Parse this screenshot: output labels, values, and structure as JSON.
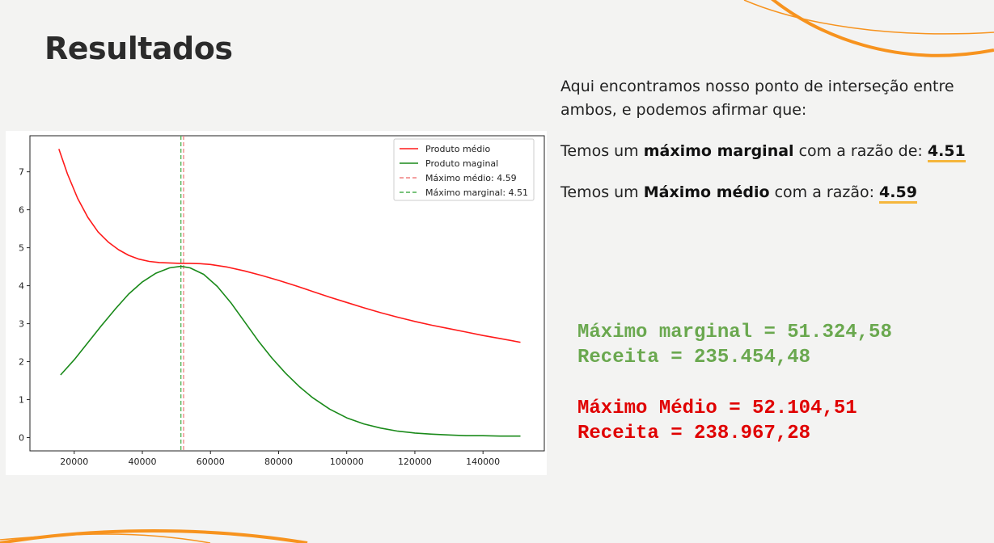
{
  "page": {
    "title": "Resultados",
    "intro": "Aqui encontramos nosso ponto de interseção entre ambos, e podemos afirmar que:",
    "line1": {
      "prefix": "Temos um ",
      "bold": "máximo marginal",
      "middle": " com a razão de: ",
      "value": "4.51"
    },
    "line2": {
      "prefix": "Temos um ",
      "bold": "Máximo médio",
      "middle": " com a razão: ",
      "value": "4.59"
    },
    "results": {
      "marginal_max": "Máximo marginal = 51.324,58",
      "marginal_revenue": "Receita = 235.454,48",
      "medio_max": "Máximo Médio = 52.104,51",
      "medio_revenue": "Receita = 238.967,28"
    },
    "colors": {
      "accent_orange": "#f7931e",
      "underline": "#f5b63c",
      "green_text": "#6aa84f",
      "red_text": "#e00000"
    }
  },
  "chart_data": {
    "type": "line",
    "title": "",
    "xlabel": "",
    "ylabel": "",
    "xlim": [
      7000,
      158000
    ],
    "ylim": [
      -0.35,
      7.95
    ],
    "xticks": [
      20000,
      40000,
      60000,
      80000,
      100000,
      120000,
      140000
    ],
    "yticks": [
      0,
      1,
      2,
      3,
      4,
      5,
      6,
      7
    ],
    "legend_position": "top-right",
    "series": [
      {
        "name": "Produto médio",
        "color": "#ff1a1a",
        "style": "solid",
        "x": [
          15500,
          18000,
          21000,
          24000,
          27000,
          30000,
          33000,
          36000,
          39000,
          42000,
          45000,
          48000,
          51000,
          54000,
          57000,
          60000,
          65000,
          70000,
          75000,
          80000,
          85000,
          90000,
          95000,
          100000,
          105000,
          110000,
          115000,
          120000,
          125000,
          130000,
          135000,
          140000,
          145000,
          151000
        ],
        "values": [
          7.6,
          6.95,
          6.3,
          5.8,
          5.42,
          5.15,
          4.95,
          4.8,
          4.7,
          4.64,
          4.61,
          4.6,
          4.59,
          4.59,
          4.58,
          4.56,
          4.49,
          4.39,
          4.27,
          4.14,
          4.0,
          3.85,
          3.7,
          3.56,
          3.42,
          3.29,
          3.17,
          3.06,
          2.96,
          2.87,
          2.78,
          2.69,
          2.61,
          2.51
        ]
      },
      {
        "name": "Produto maginal",
        "color": "#1a8a1a",
        "style": "solid",
        "x": [
          16000,
          20000,
          24000,
          28000,
          32000,
          36000,
          40000,
          44000,
          48000,
          51300,
          54000,
          58000,
          62000,
          66000,
          70000,
          74000,
          78000,
          82000,
          86000,
          90000,
          95000,
          100000,
          105000,
          110000,
          115000,
          120000,
          125000,
          130000,
          135000,
          140000,
          145000,
          151000
        ],
        "values": [
          1.65,
          2.05,
          2.5,
          2.95,
          3.38,
          3.78,
          4.1,
          4.33,
          4.47,
          4.51,
          4.47,
          4.3,
          3.98,
          3.55,
          3.05,
          2.55,
          2.1,
          1.7,
          1.35,
          1.05,
          0.75,
          0.52,
          0.36,
          0.25,
          0.17,
          0.12,
          0.09,
          0.07,
          0.05,
          0.05,
          0.04,
          0.04
        ]
      }
    ],
    "vlines": [
      {
        "name": "Máximo médio: 4.59",
        "x": 52104.51,
        "color": "#f08080",
        "style": "dashed"
      },
      {
        "name": "Máximo marginal: 4.51",
        "x": 51324.58,
        "color": "#4caf50",
        "style": "dashed"
      }
    ]
  }
}
